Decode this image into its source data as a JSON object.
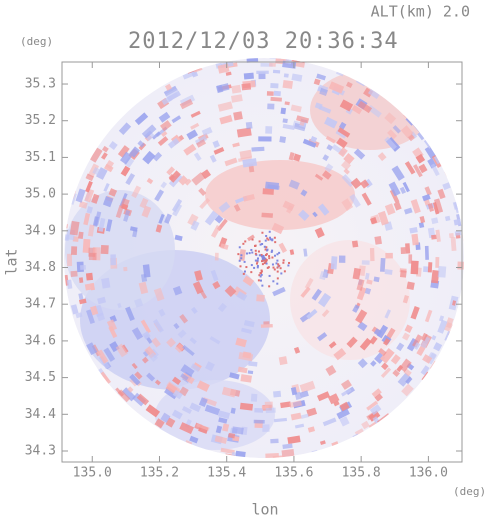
{
  "chart_data": {
    "type": "radar-field",
    "altitude_text": "ALT(km) 2.0",
    "title": "2012/12/03 20:36:34",
    "y_unit": "(deg)",
    "x_unit": "(deg)",
    "ylabel": "lat",
    "xlabel": "lon",
    "xlim": [
      134.91,
      136.1
    ],
    "ylim": [
      34.27,
      35.36
    ],
    "xticks": [
      {
        "value": 135,
        "label": "135.0"
      },
      135.2,
      135.4,
      135.6,
      135.8,
      {
        "value": 136,
        "label": "136.0"
      }
    ],
    "yticks": [
      34.3,
      34.4,
      34.5,
      34.6,
      34.7,
      34.8,
      34.9,
      {
        "value": 35,
        "label": "35.0"
      },
      35.1,
      35.2,
      35.3
    ]
  }
}
